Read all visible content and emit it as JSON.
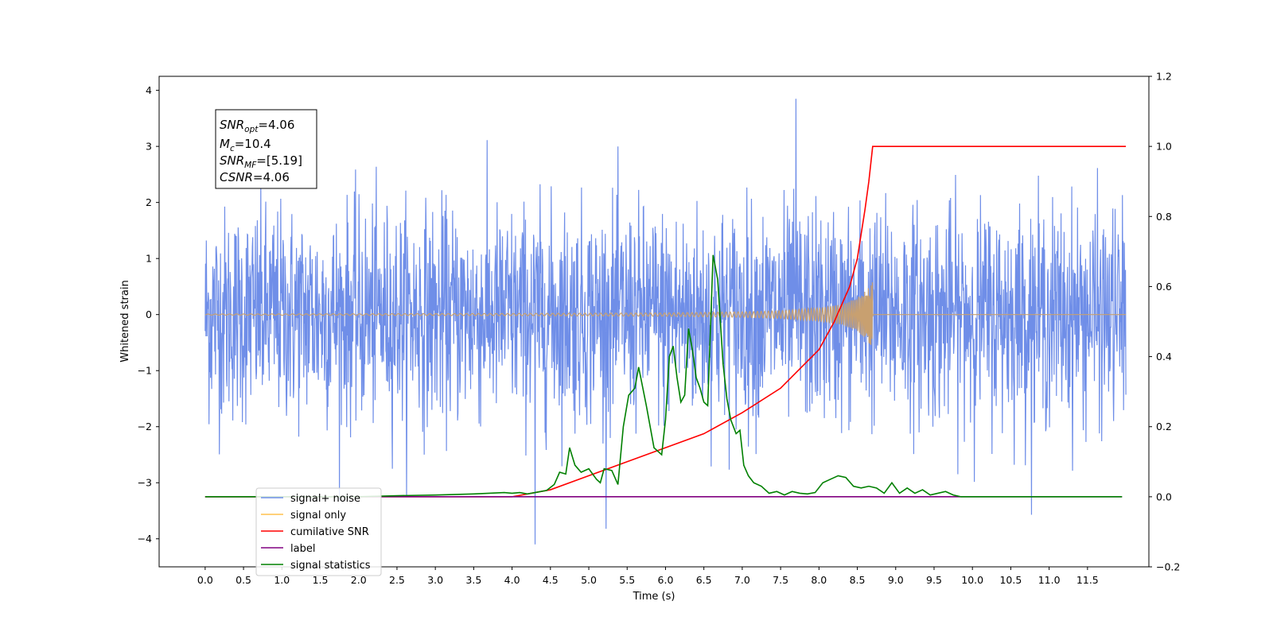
{
  "chart_data": {
    "type": "line",
    "xlabel": "Time (s)",
    "ylabel": "Whitened strain",
    "xlim": [
      -0.6,
      12.3
    ],
    "ylim": [
      -4.5,
      4.25
    ],
    "ylim_right": [
      -0.2,
      1.2
    ],
    "x_ticks": [
      "0.0",
      "0.5",
      "1.0",
      "1.5",
      "2.0",
      "2.5",
      "3.0",
      "3.5",
      "4.0",
      "4.5",
      "5.0",
      "5.5",
      "6.0",
      "6.5",
      "7.0",
      "7.5",
      "8.0",
      "8.5",
      "9.0",
      "9.5",
      "10.0",
      "10.5",
      "11.0",
      "11.5"
    ],
    "y_ticks_left": [
      "4",
      "3",
      "2",
      "1",
      "0",
      "−1",
      "−2",
      "−3",
      "−4"
    ],
    "y_ticks_right": [
      "1.2",
      "1.0",
      "0.8",
      "0.6",
      "0.4",
      "0.2",
      "0.0",
      "−0.2"
    ],
    "legend_position": "lower-left",
    "annotation": {
      "snr_opt_base": "SNR",
      "snr_opt_sub": "opt",
      "snr_opt_value": "=4.06",
      "mc_base": "M",
      "mc_sub": "c",
      "mc_value": "=10.4",
      "snr_mf_base": "SNR",
      "snr_mf_sub": "MF",
      "snr_mf_value": "=[5.19]",
      "csnr_base": "CSNR",
      "csnr_value": "=4.06"
    },
    "series": [
      {
        "name": "signal+ noise",
        "color": "#6f8ee8",
        "axis": "left",
        "x_start": 0.0,
        "x_end": 12.0,
        "noise_std": 1.0,
        "y_max": 3.85,
        "y_min": -4.1
      },
      {
        "name": "signal only",
        "color": "#c8a070",
        "axis": "left",
        "x_start": 0.0,
        "x_end": 12.0,
        "merger_time": 8.7,
        "envelope": {
          "x": [
            0,
            4,
            6,
            7,
            7.5,
            8,
            8.3,
            8.5,
            8.6,
            8.7
          ],
          "y": [
            0.01,
            0.02,
            0.03,
            0.05,
            0.07,
            0.12,
            0.18,
            0.3,
            0.42,
            0.6
          ]
        }
      },
      {
        "name": "cumilative SNR",
        "color": "#ff0000",
        "axis": "right",
        "x": [
          0,
          4,
          4.5,
          5,
          5.5,
          6,
          6.5,
          7,
          7.5,
          8,
          8.2,
          8.4,
          8.5,
          8.6,
          8.65,
          8.7,
          12.0
        ],
        "y": [
          0,
          0,
          0.02,
          0.06,
          0.1,
          0.14,
          0.18,
          0.24,
          0.31,
          0.42,
          0.5,
          0.6,
          0.68,
          0.82,
          0.9,
          1.0,
          1.0
        ]
      },
      {
        "name": "label",
        "color": "#800080",
        "axis": "right",
        "x": [
          0,
          11.95
        ],
        "y": [
          0,
          0
        ]
      },
      {
        "name": "signal statistics",
        "color": "#008000",
        "axis": "right",
        "x": [
          0,
          2.0,
          2.5,
          3.0,
          3.5,
          3.7,
          3.9,
          4.0,
          4.1,
          4.2,
          4.3,
          4.45,
          4.55,
          4.62,
          4.7,
          4.75,
          4.82,
          4.9,
          5.0,
          5.1,
          5.15,
          5.2,
          5.3,
          5.38,
          5.45,
          5.52,
          5.6,
          5.65,
          5.75,
          5.85,
          5.95,
          6.0,
          6.05,
          6.1,
          6.15,
          6.2,
          6.25,
          6.3,
          6.35,
          6.4,
          6.45,
          6.5,
          6.55,
          6.62,
          6.68,
          6.75,
          6.8,
          6.85,
          6.92,
          6.97,
          7.02,
          7.08,
          7.15,
          7.25,
          7.35,
          7.45,
          7.55,
          7.65,
          7.75,
          7.85,
          7.95,
          8.05,
          8.15,
          8.25,
          8.35,
          8.45,
          8.55,
          8.65,
          8.75,
          8.85,
          8.95,
          9.05,
          9.15,
          9.25,
          9.35,
          9.45,
          9.55,
          9.65,
          9.75,
          9.85,
          10.0,
          11.0,
          11.95
        ],
        "y": [
          0,
          0,
          0.003,
          0.005,
          0.008,
          0.01,
          0.012,
          0.01,
          0.012,
          0.008,
          0.012,
          0.018,
          0.035,
          0.07,
          0.065,
          0.14,
          0.09,
          0.07,
          0.08,
          0.05,
          0.04,
          0.08,
          0.075,
          0.035,
          0.2,
          0.29,
          0.31,
          0.37,
          0.26,
          0.14,
          0.12,
          0.22,
          0.4,
          0.43,
          0.34,
          0.27,
          0.29,
          0.48,
          0.42,
          0.34,
          0.31,
          0.27,
          0.26,
          0.69,
          0.62,
          0.38,
          0.28,
          0.22,
          0.18,
          0.19,
          0.09,
          0.06,
          0.04,
          0.03,
          0.01,
          0.015,
          0.005,
          0.015,
          0.01,
          0.008,
          0.012,
          0.04,
          0.05,
          0.06,
          0.055,
          0.03,
          0.025,
          0.03,
          0.025,
          0.01,
          0.04,
          0.01,
          0.025,
          0.01,
          0.02,
          0.005,
          0.01,
          0.015,
          0.005,
          0.0,
          0.0,
          0.0,
          0.0
        ]
      }
    ]
  }
}
